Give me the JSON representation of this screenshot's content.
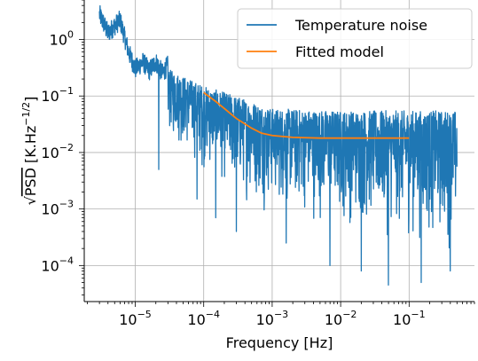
{
  "chart_data": {
    "type": "line",
    "title": "",
    "xlabel": "Frequency [Hz]",
    "ylabel": "√PSD [K.Hz^-1/2]",
    "ylabel_parts": {
      "sqrt": "√",
      "psd": "PSD",
      "unit_open": "[K.Hz",
      "exp_minus": "−",
      "exp_num": "1/2",
      "unit_close": "]"
    },
    "xscale": "log",
    "yscale": "log",
    "xlim": [
      1.8e-06,
      0.9
    ],
    "ylim": [
      2.3e-05,
      5.0
    ],
    "grid": true,
    "legend_position": "top-right",
    "x_ticks": [
      {
        "value": 1e-05,
        "base": "10",
        "exp": "−5"
      },
      {
        "value": 0.0001,
        "base": "10",
        "exp": "−4"
      },
      {
        "value": 0.001,
        "base": "10",
        "exp": "−3"
      },
      {
        "value": 0.01,
        "base": "10",
        "exp": "−2"
      },
      {
        "value": 0.1,
        "base": "10",
        "exp": "−1"
      }
    ],
    "y_ticks": [
      {
        "value": 0.0001,
        "base": "10",
        "exp": "−4"
      },
      {
        "value": 0.001,
        "base": "10",
        "exp": "−3"
      },
      {
        "value": 0.01,
        "base": "10",
        "exp": "−2"
      },
      {
        "value": 0.1,
        "base": "10",
        "exp": "−1"
      },
      {
        "value": 1,
        "base": "10",
        "exp": "0"
      }
    ],
    "series": [
      {
        "name": "Temperature noise",
        "color": "#1f77b4",
        "kind": "noisy-spectrum",
        "points": [
          [
            3e-06,
            2.8
          ],
          [
            4e-06,
            1.3
          ],
          [
            6e-06,
            2.2
          ],
          [
            8e-06,
            0.6
          ],
          [
            1e-05,
            0.3
          ],
          [
            1.3e-05,
            0.4
          ],
          [
            1.6e-05,
            0.28
          ],
          [
            2e-05,
            0.4
          ],
          [
            2.5e-05,
            0.25
          ],
          [
            3e-05,
            0.35
          ],
          [
            4e-05,
            0.2
          ],
          [
            6e-05,
            0.15
          ],
          [
            0.0001,
            0.1
          ],
          [
            0.0002,
            0.06
          ],
          [
            0.0004,
            0.04
          ],
          [
            0.001,
            0.03
          ],
          [
            0.003,
            0.028
          ],
          [
            0.01,
            0.028
          ],
          [
            0.1,
            0.028
          ],
          [
            0.5,
            0.028
          ]
        ],
        "upper_envelope": [
          [
            3e-05,
            0.3
          ],
          [
            0.0001,
            0.15
          ],
          [
            0.0003,
            0.1
          ],
          [
            0.001,
            0.06
          ],
          [
            0.01,
            0.055
          ],
          [
            0.5,
            0.055
          ]
        ],
        "lower_envelope": [
          [
            1e-05,
            0.12
          ],
          [
            3e-05,
            0.012
          ],
          [
            0.0001,
            0.003
          ],
          [
            0.0003,
            0.001
          ],
          [
            0.001,
            0.0006
          ],
          [
            0.01,
            0.0003
          ],
          [
            0.5,
            0.0001
          ]
        ],
        "min_spikes": [
          [
            2.2e-05,
            0.005
          ],
          [
            8e-05,
            0.0015
          ],
          [
            0.00015,
            0.0007
          ],
          [
            0.0003,
            0.0004
          ],
          [
            0.0016,
            0.00025
          ],
          [
            0.007,
            0.0001
          ],
          [
            0.02,
            8e-05
          ],
          [
            0.05,
            4.5e-05
          ],
          [
            0.15,
            5e-05
          ],
          [
            0.4,
            8e-05
          ]
        ]
      },
      {
        "name": "Fitted model",
        "color": "#ff7f0e",
        "kind": "line",
        "points": [
          [
            0.0001,
            0.115
          ],
          [
            0.00015,
            0.08
          ],
          [
            0.0002,
            0.06
          ],
          [
            0.0003,
            0.04
          ],
          [
            0.0005,
            0.027
          ],
          [
            0.0007,
            0.022
          ],
          [
            0.001,
            0.02
          ],
          [
            0.002,
            0.0185
          ],
          [
            0.005,
            0.018
          ],
          [
            0.01,
            0.018
          ],
          [
            0.1,
            0.018
          ]
        ]
      }
    ]
  }
}
